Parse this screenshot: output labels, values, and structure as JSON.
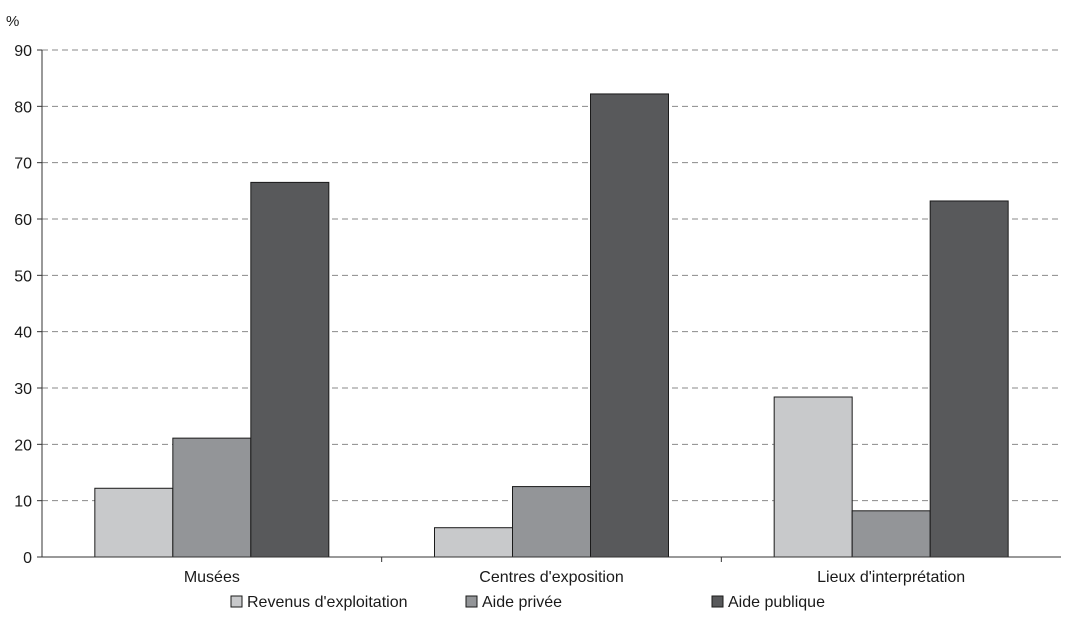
{
  "chart_data": {
    "type": "bar",
    "ylabel": "%",
    "ylim": [
      0,
      90
    ],
    "yticks": [
      "0",
      "10",
      "20",
      "30",
      "40",
      "50",
      "60",
      "70",
      "80",
      "90"
    ],
    "grid": "horizontal-dashed",
    "legend_position": "bottom",
    "categories": [
      "Musées",
      "Centres d'exposition",
      "Lieux d'interprétation"
    ],
    "series": [
      {
        "name": "Revenus d'exploitation",
        "color": "#c8c9cb",
        "values": [
          12.2,
          5.2,
          28.4
        ]
      },
      {
        "name": "Aide privée",
        "color": "#939598",
        "values": [
          21.1,
          12.5,
          8.2
        ]
      },
      {
        "name": "Aide publique",
        "color": "#58595b",
        "values": [
          66.5,
          82.2,
          63.2
        ]
      }
    ]
  }
}
